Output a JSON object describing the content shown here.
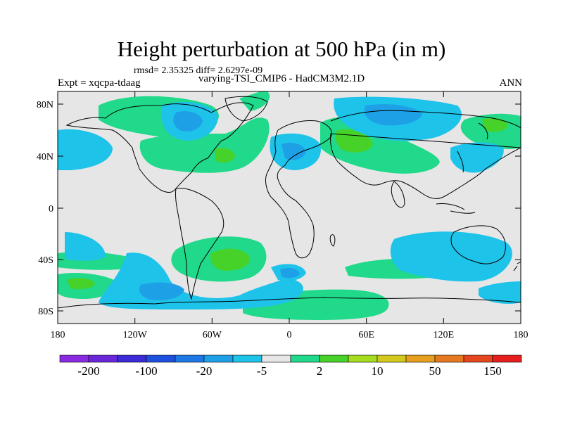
{
  "title": "Height perturbation at 500 hPa (in m)",
  "stats": "rmsd= 2.35325 diff= 2.6297e-09",
  "left_label": "Expt = xqcpa-tdaag",
  "center_label": "varying-TSI_CMIP6 - HadCM3M2.1D",
  "right_label": "ANN",
  "map": {
    "background_color": "#e6e6e6",
    "y_ticks": [
      "80N",
      "40N",
      "0",
      "40S",
      "80S"
    ],
    "x_ticks": [
      "180",
      "120W",
      "60W",
      "0",
      "60E",
      "120E",
      "180"
    ]
  },
  "colorbar": {
    "colors": [
      "#8a2be2",
      "#6a26d9",
      "#3a2bd6",
      "#1e50e0",
      "#1e78e6",
      "#1ea0e6",
      "#1ec3ea",
      "#e6e6e6",
      "#20d98a",
      "#46d228",
      "#a6dc20",
      "#d2c81e",
      "#e6a01e",
      "#e6781e",
      "#e6461e",
      "#e61e1e"
    ],
    "labels": [
      "-200",
      "-100",
      "-20",
      "-5",
      "2",
      "10",
      "50",
      "150"
    ]
  },
  "chart_data": {
    "type": "heatmap",
    "title": "Height perturbation at 500 hPa (in m)",
    "projection": "cylindrical equidistant",
    "lon_range": [
      -180,
      180
    ],
    "lat_range": [
      -90,
      90
    ],
    "levels": [
      -200,
      -150,
      -100,
      -50,
      -20,
      -10,
      -5,
      -2,
      2,
      5,
      10,
      20,
      50,
      100,
      150,
      200
    ],
    "approximate_features": [
      {
        "region": "North Pacific / Alaska",
        "sign": "positive",
        "approx_value": 3
      },
      {
        "region": "Canada / Hudson Bay",
        "sign": "negative",
        "approx_value": -4
      },
      {
        "region": "North Atlantic",
        "sign": "positive",
        "approx_value": 6
      },
      {
        "region": "Western Europe",
        "sign": "negative",
        "approx_value": -4
      },
      {
        "region": "Eastern Europe / Western Russia",
        "sign": "positive",
        "approx_value": 6
      },
      {
        "region": "Siberia",
        "sign": "negative",
        "approx_value": -4
      },
      {
        "region": "NE Pacific / Kamchatka",
        "sign": "positive",
        "approx_value": 5
      },
      {
        "region": "South Atlantic / South America",
        "sign": "positive",
        "approx_value": 8
      },
      {
        "region": "Southern Ocean / Antarctica",
        "sign": "negative",
        "approx_value": -4
      },
      {
        "region": "Australia",
        "sign": "negative",
        "approx_value": -3
      }
    ]
  }
}
